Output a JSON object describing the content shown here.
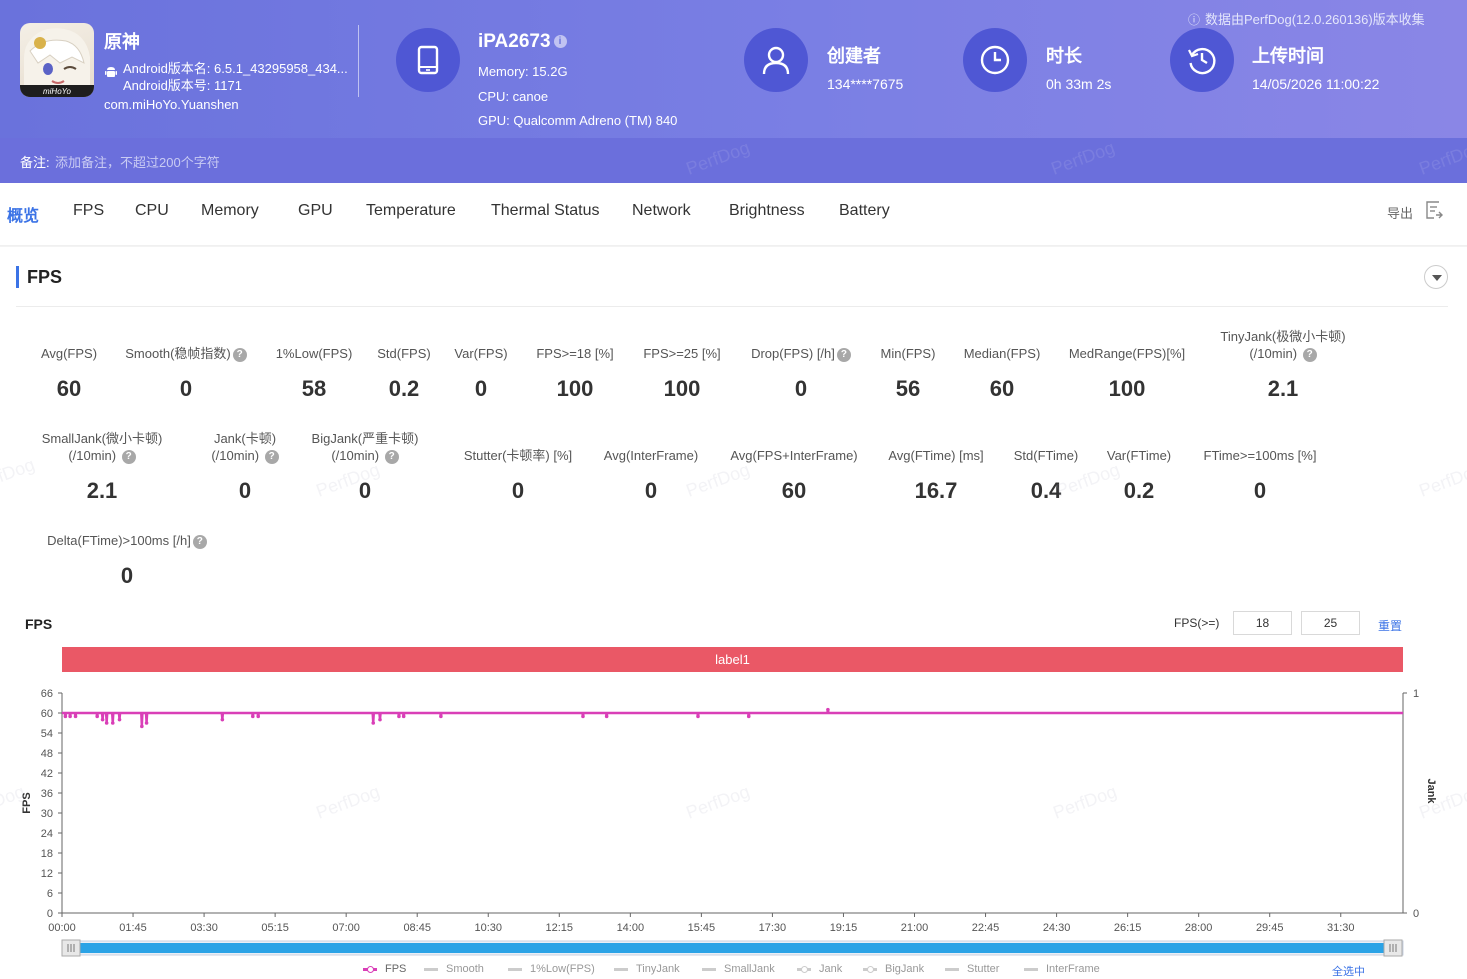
{
  "header": {
    "app_name": "原神",
    "version_name": "Android版本名: 6.5.1_43295958_434...",
    "version_code": "Android版本号: 1171",
    "package": "com.miHoYo.Yuanshen",
    "app_icon_text": "miHoYo",
    "device": {
      "name": "iPA2673",
      "memory": "Memory: 15.2G",
      "cpu": "CPU: canoe",
      "gpu": "GPU: Qualcomm Adreno (TM) 840"
    },
    "creator": {
      "title": "创建者",
      "value": "134****7675"
    },
    "duration": {
      "title": "时长",
      "value": "0h 33m 2s"
    },
    "upload": {
      "title": "上传时间",
      "value": "14/05/2026 11:00:22"
    },
    "source_note": "数据由PerfDog(12.0.260136)版本收集",
    "accent": "#6a72dc"
  },
  "note": {
    "label": "备注:",
    "placeholder": "添加备注，不超过200个字符"
  },
  "tabs": [
    {
      "label": "概览",
      "active": true
    },
    {
      "label": "FPS"
    },
    {
      "label": "CPU"
    },
    {
      "label": "Memory"
    },
    {
      "label": "GPU"
    },
    {
      "label": "Temperature"
    },
    {
      "label": "Thermal Status"
    },
    {
      "label": "Network"
    },
    {
      "label": "Brightness"
    },
    {
      "label": "Battery"
    }
  ],
  "export_label": "导出",
  "section_title": "FPS",
  "watermark": "PerfDog",
  "metrics_row1": [
    {
      "l1": "Avg(FPS)",
      "l2": "",
      "v": "60"
    },
    {
      "l1": "Smooth(稳帧指数)",
      "l2": "",
      "v": "0",
      "q": true
    },
    {
      "l1": "1%Low(FPS)",
      "l2": "",
      "v": "58"
    },
    {
      "l1": "Std(FPS)",
      "l2": "",
      "v": "0.2"
    },
    {
      "l1": "Var(FPS)",
      "l2": "",
      "v": "0"
    },
    {
      "l1": "FPS>=18 [%]",
      "l2": "",
      "v": "100"
    },
    {
      "l1": "FPS>=25 [%]",
      "l2": "",
      "v": "100"
    },
    {
      "l1": "Drop(FPS) [/h]",
      "l2": "",
      "v": "0",
      "q": true
    },
    {
      "l1": "Min(FPS)",
      "l2": "",
      "v": "56"
    },
    {
      "l1": "Median(FPS)",
      "l2": "",
      "v": "60"
    },
    {
      "l1": "MedRange(FPS)[%]",
      "l2": "",
      "v": "100"
    },
    {
      "l1": "TinyJank(极微小卡顿)",
      "l2": "(/10min)",
      "v": "2.1",
      "q2": true
    }
  ],
  "metrics_row2": [
    {
      "l1": "SmallJank(微小卡顿)",
      "l2": "(/10min)",
      "v": "2.1",
      "q2": true
    },
    {
      "l1": "Jank(卡顿)",
      "l2": "(/10min)",
      "v": "0",
      "q2": true
    },
    {
      "l1": "BigJank(严重卡顿)",
      "l2": "(/10min)",
      "v": "0",
      "q2": true
    },
    {
      "l1": "Stutter(卡顿率) [%]",
      "l2": "",
      "v": "0"
    },
    {
      "l1": "Avg(InterFrame)",
      "l2": "",
      "v": "0"
    },
    {
      "l1": "Avg(FPS+InterFrame)",
      "l2": "",
      "v": "60"
    },
    {
      "l1": "Avg(FTime) [ms]",
      "l2": "",
      "v": "16.7"
    },
    {
      "l1": "Std(FTime)",
      "l2": "",
      "v": "0.4"
    },
    {
      "l1": "Var(FTime)",
      "l2": "",
      "v": "0.2"
    },
    {
      "l1": "FTime>=100ms [%]",
      "l2": "",
      "v": "0"
    }
  ],
  "metrics_row3": [
    {
      "l1": "Delta(FTime)>100ms [/h]",
      "l2": "",
      "v": "0",
      "q": true
    }
  ],
  "chart_controls": {
    "title": "FPS",
    "threshold_label": "FPS(>=)",
    "threshold1": "18",
    "threshold2": "25",
    "reset_label": "重置",
    "band_label": "label1",
    "select_all_label": "全选中"
  },
  "chart_data": {
    "type": "line",
    "ylabel": "FPS",
    "y2label": "Jank",
    "ylim": [
      0,
      66
    ],
    "y2lim": [
      0,
      1
    ],
    "yticks": [
      "0",
      "6",
      "12",
      "18",
      "24",
      "30",
      "36",
      "42",
      "48",
      "54",
      "60",
      "66"
    ],
    "y2ticks": [
      "0",
      "1"
    ],
    "xlim_seconds": [
      0,
      1982
    ],
    "xticks": [
      "00:00",
      "01:45",
      "03:30",
      "05:15",
      "07:00",
      "08:45",
      "10:30",
      "12:15",
      "14:00",
      "15:45",
      "17:30",
      "19:15",
      "21:00",
      "22:45",
      "24:30",
      "26:15",
      "28:00",
      "29:45",
      "31:30"
    ],
    "grid": false,
    "legend_position": "bottom",
    "series": [
      {
        "name": "FPS",
        "baseline": 60,
        "color": "#d93fb7",
        "dips": [
          [
            5,
            59
          ],
          [
            12,
            59
          ],
          [
            20,
            59
          ],
          [
            52,
            59
          ],
          [
            60,
            58
          ],
          [
            66,
            57
          ],
          [
            75,
            57
          ],
          [
            85,
            58
          ],
          [
            118,
            56
          ],
          [
            125,
            57
          ],
          [
            237,
            58
          ],
          [
            282,
            59
          ],
          [
            290,
            59
          ],
          [
            460,
            57
          ],
          [
            470,
            58
          ],
          [
            498,
            59
          ],
          [
            505,
            59
          ],
          [
            560,
            59
          ],
          [
            770,
            59
          ],
          [
            805,
            59
          ],
          [
            940,
            59
          ],
          [
            1015,
            59
          ],
          [
            1132,
            61
          ]
        ]
      },
      {
        "name": "Smooth"
      },
      {
        "name": "1%Low(FPS)"
      },
      {
        "name": "TinyJank"
      },
      {
        "name": "SmallJank"
      },
      {
        "name": "Jank"
      },
      {
        "name": "BigJank"
      },
      {
        "name": "Stutter"
      },
      {
        "name": "InterFrame"
      }
    ]
  }
}
